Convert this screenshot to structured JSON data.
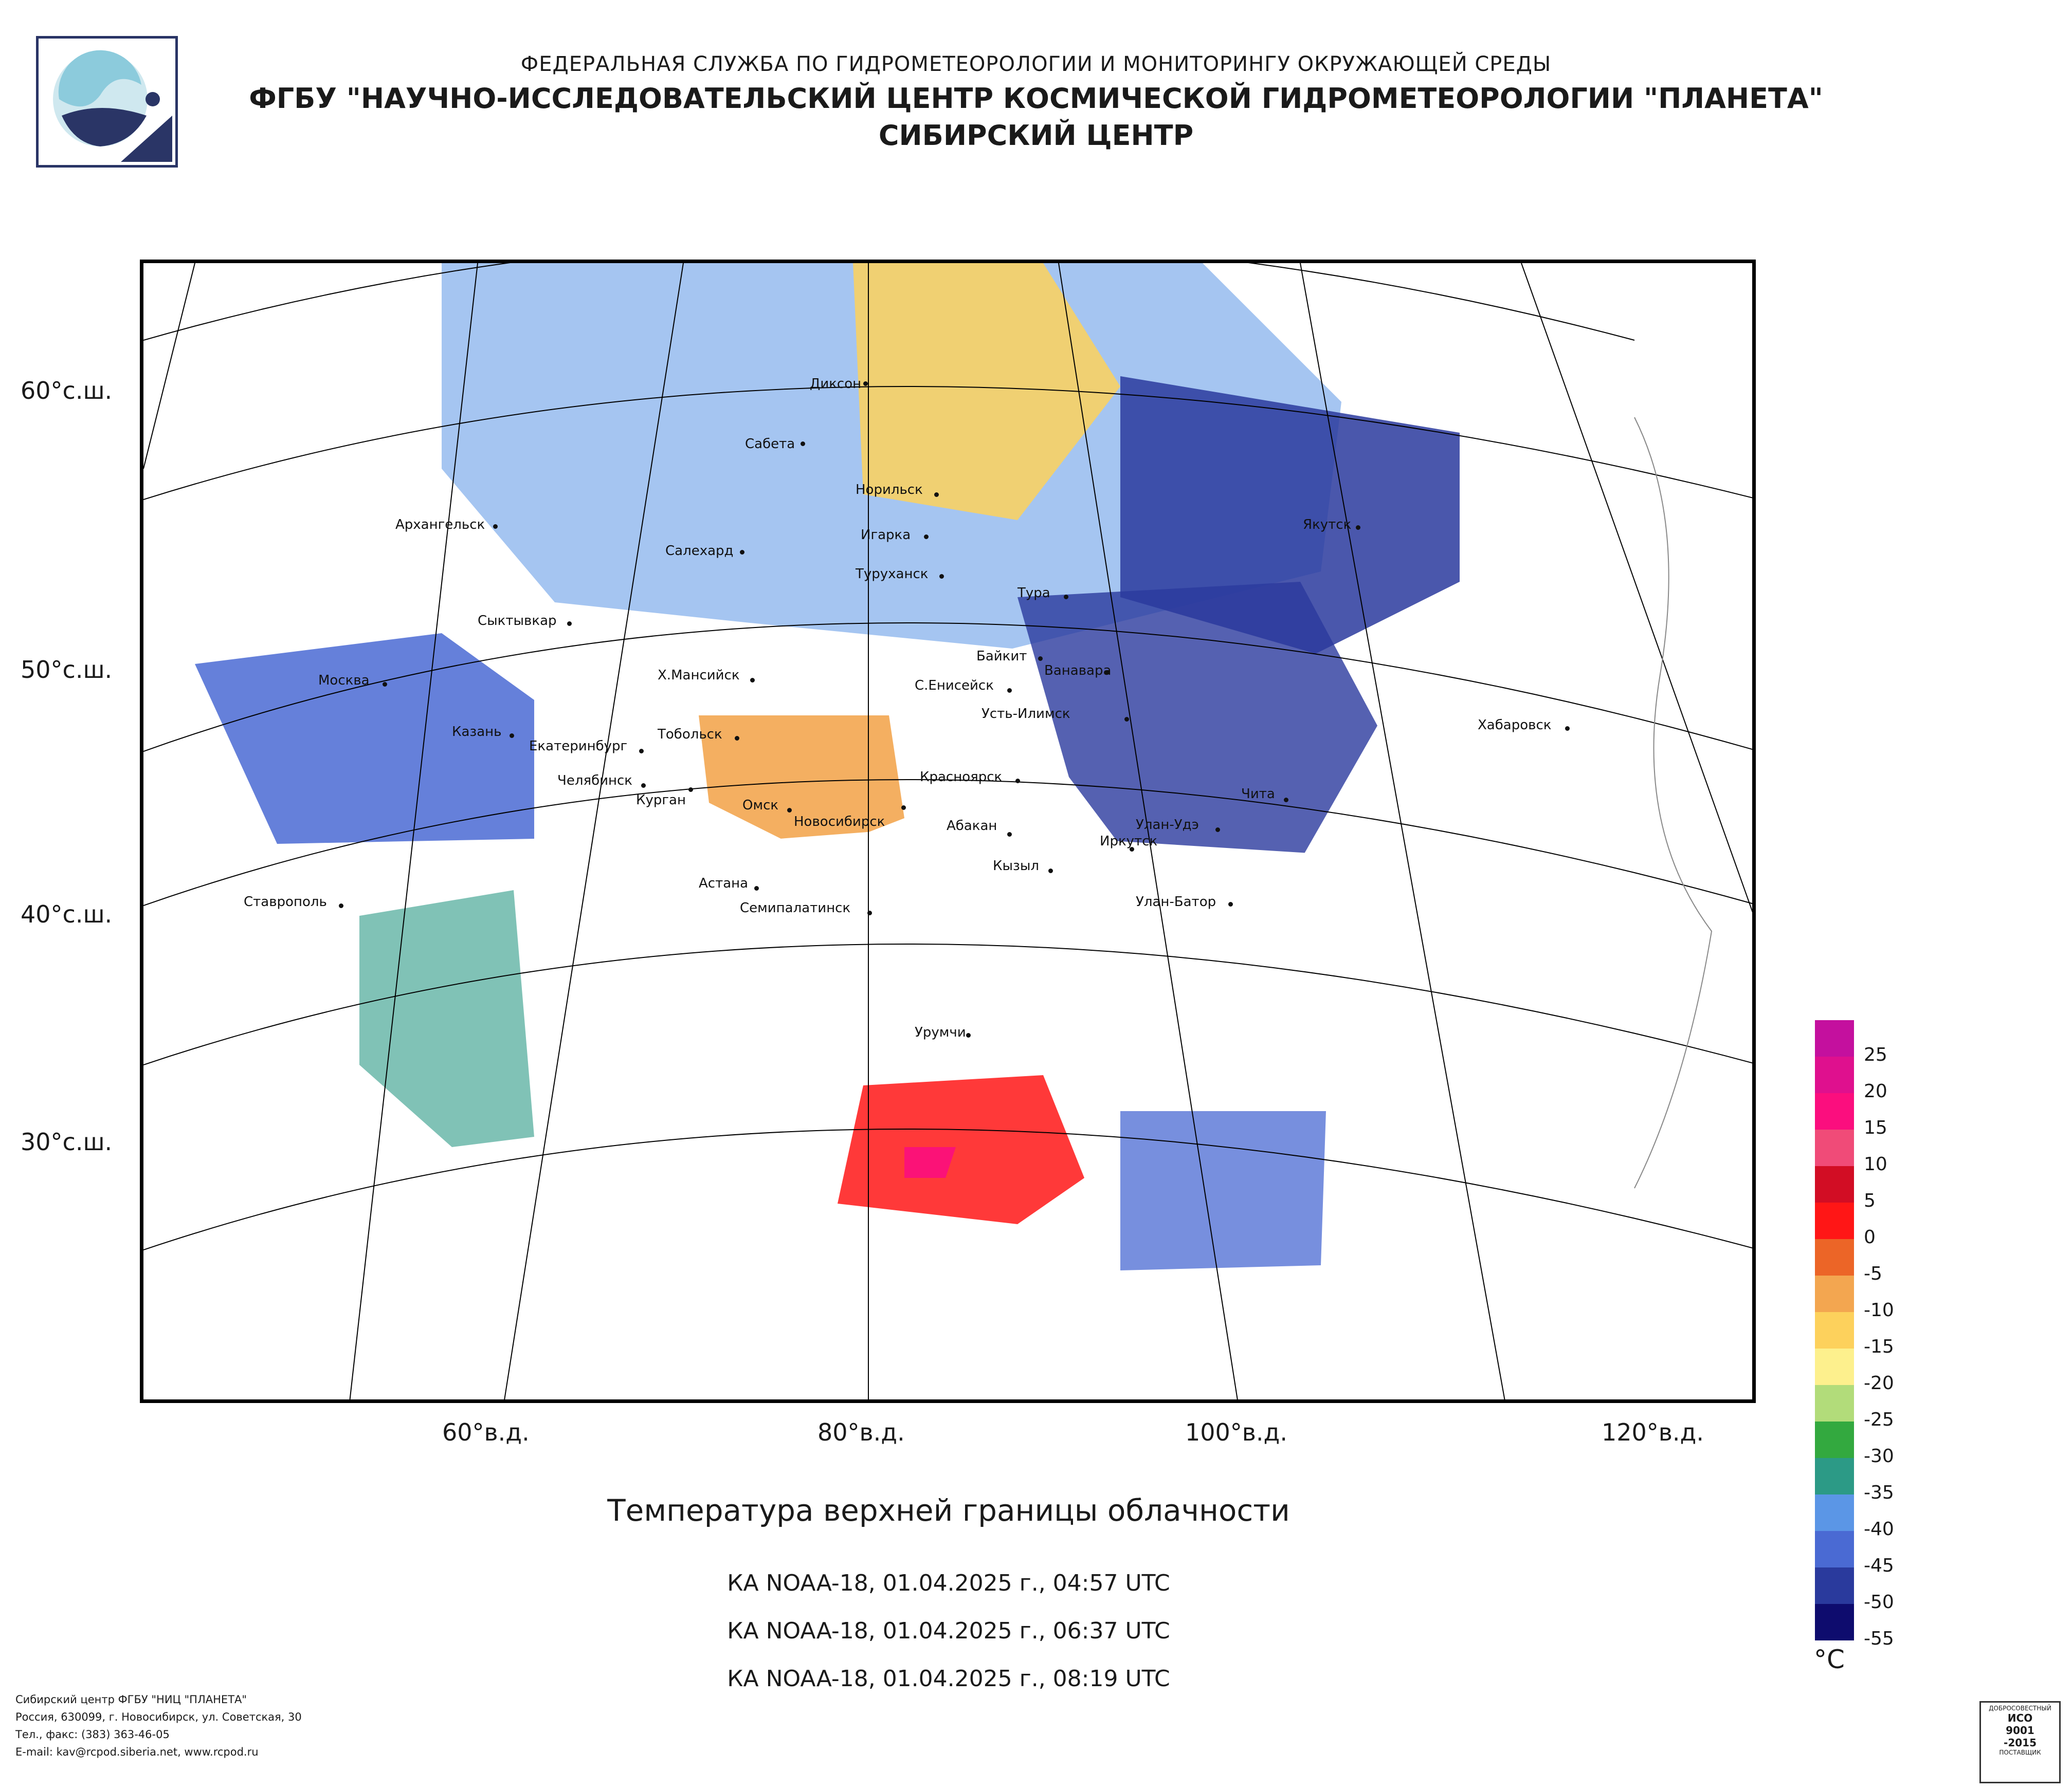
{
  "header": {
    "line1": "ФЕДЕРАЛЬНАЯ СЛУЖБА ПО ГИДРОМЕТЕОРОЛОГИИ И МОНИТОРИНГУ ОКРУЖАЮЩЕЙ СРЕДЫ",
    "line2": "ФГБУ \"НАУЧНО-ИССЛЕДОВАТЕЛЬСКИЙ ЦЕНТР КОСМИЧЕСКОЙ ГИДРОМЕТЕОРОЛОГИИ \"ПЛАНЕТА\"",
    "line3": "СИБИРСКИЙ ЦЕНТР"
  },
  "map": {
    "title": "Температура верхней границы облачности",
    "lat_labels": [
      "60°с.ш.",
      "50°с.ш.",
      "40°с.ш.",
      "30°с.ш."
    ],
    "lon_labels": [
      "60°в.д.",
      "80°в.д.",
      "100°в.д.",
      "120°в.д."
    ],
    "cities": [
      "Диксон",
      "Сабета",
      "Норильск",
      "Игарка",
      "Архангельск",
      "Салехард",
      "Туруханск",
      "Тура",
      "Якутск",
      "Сыктывкар",
      "Байкит",
      "Ванавара",
      "Х.Мансийск",
      "С.Енисейск",
      "Москва",
      "Усть-Илимск",
      "Казань",
      "Тобольск",
      "Екатеринбург",
      "Хабаровск",
      "Красноярск",
      "Челябинск",
      "Курган",
      "Омск",
      "Новосибирск",
      "Абакан",
      "Чита",
      "Улан-Удэ",
      "Иркутск",
      "Кызыл",
      "Астана",
      "Ставрополь",
      "Семипалатинск",
      "Улан-Батор",
      "Урумчи"
    ]
  },
  "passes": [
    "КА NOAA-18, 01.04.2025 г., 04:57 UTC",
    "КА NOAA-18, 01.04.2025 г., 06:37 UTC",
    "КА NOAA-18, 01.04.2025 г., 08:19 UTC"
  ],
  "legend": {
    "unit": "°С",
    "ticks": [
      "25",
      "20",
      "15",
      "10",
      "5",
      "0",
      "-5",
      "-10",
      "-15",
      "-20",
      "-25",
      "-30",
      "-35",
      "-40",
      "-45",
      "-50",
      "-55"
    ],
    "colors": [
      "#c4109e",
      "#df108e",
      "#fb0e7e",
      "#f04b78",
      "#d20d24",
      "#ff1616",
      "#ec6527",
      "#f3a650",
      "#fdd15c",
      "#fdf08d",
      "#b2dc7a",
      "#33a93f",
      "#2c9a86",
      "#5b96e6",
      "#4a6ad3",
      "#2a3a9d",
      "#0e0c6e"
    ]
  },
  "footer": {
    "line1": "Сибирский центр ФГБУ \"НИЦ \"ПЛАНЕТА\"",
    "line2": "Россия, 630099, г. Новосибирск, ул. Советская, 30",
    "line3": "Тел., факс: (383) 363-46-05",
    "line4": "E-mail: kav@rcpod.siberia.net, www.rcpod.ru"
  },
  "cert": {
    "top": "ДОБРОСОВЕСТНЫЙ",
    "l1": "ИСО",
    "l2": "9001",
    "l3": "-2015",
    "bottom": "ПОСТАВЩИК"
  }
}
